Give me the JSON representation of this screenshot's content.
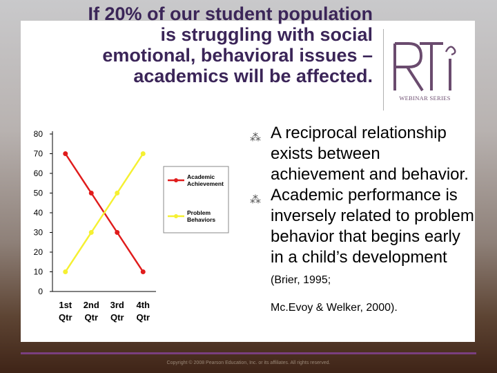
{
  "slide": {
    "title": "If 20% of our student population\nis struggling with social\nemotional, behavioral issues –\nacademics will be affected.",
    "bullets": [
      "A reciprocal relationship exists between achievement and behavior.",
      "Academic performance is inversely related to problem behavior that begins early in a child’s development"
    ],
    "citation_part1": "(Brier, 1995;",
    "citation_part2": "Mc.Evoy & Welker, 2000).",
    "footer": "Copyright © 2008 Pearson Education, Inc. or its affiliates. All rights reserved."
  },
  "logo": {
    "letters": "RTI",
    "caption": "WEBINAR SERIES",
    "color": "#6a4b6e"
  },
  "icons": {
    "bullet": "bullet-mark-icon"
  },
  "colors": {
    "title": "#3b2558",
    "academic": "#e01c1c",
    "problem": "#f5f032",
    "footer_rule": "#7a3f80"
  },
  "chart_data": {
    "type": "line",
    "categories": [
      "1st Qtr",
      "2nd Qtr",
      "3rd Qtr",
      "4th Qtr"
    ],
    "series": [
      {
        "name": "Academic Achievement",
        "values": [
          70,
          50,
          30,
          10
        ],
        "color": "#e01c1c"
      },
      {
        "name": "Problem Behaviors",
        "values": [
          10,
          30,
          50,
          70
        ],
        "color": "#f5f032"
      }
    ],
    "yticks": [
      0,
      10,
      20,
      30,
      40,
      50,
      60,
      70,
      80
    ],
    "ylim": [
      0,
      80
    ],
    "legend_position": "right",
    "grid": false
  }
}
